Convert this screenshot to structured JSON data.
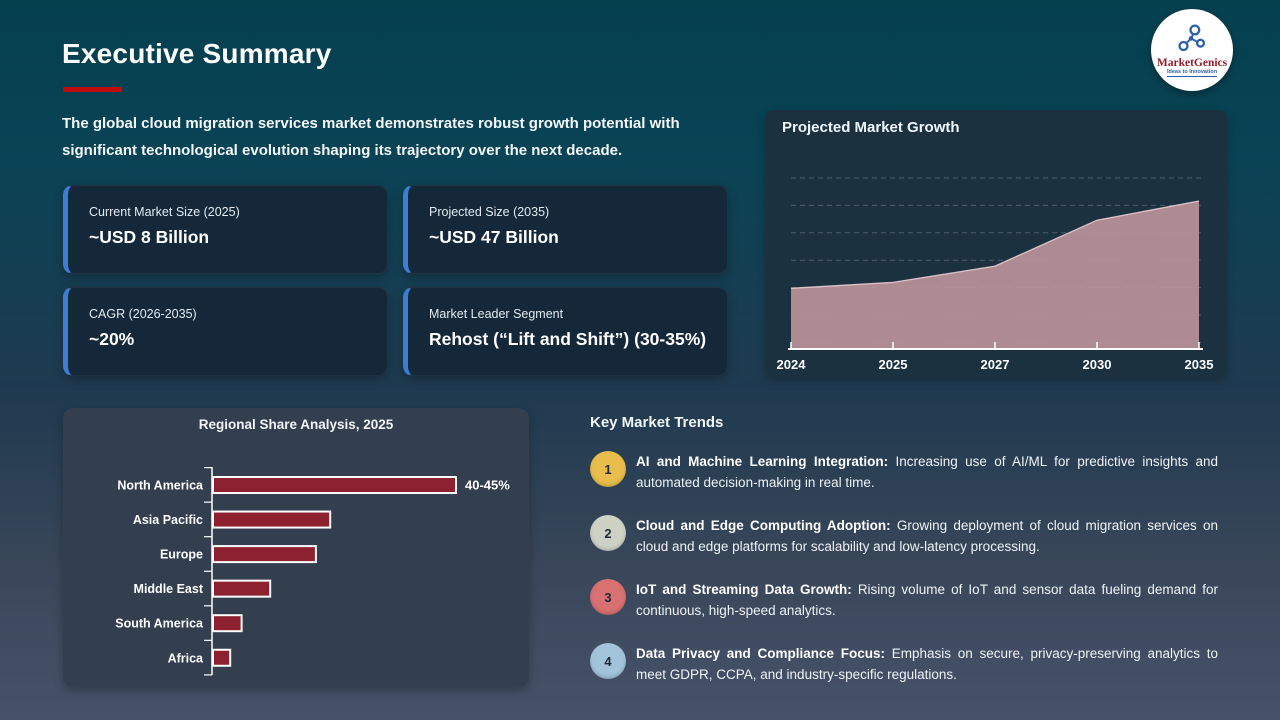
{
  "header": {
    "title": "Executive Summary"
  },
  "logo": {
    "name": "MarketGenics",
    "tagline": "Ideas to Innovation"
  },
  "intro": "The global cloud migration services market demonstrates robust growth potential with significant technological evolution shaping its trajectory over the next decade.",
  "stat_cards": [
    {
      "label": "Current Market Size (2025)",
      "value": "~USD 8 Billion"
    },
    {
      "label": "Projected Size (2035)",
      "value": "~USD 47 Billion"
    },
    {
      "label": "CAGR (2026-2035)",
      "value": "~20%"
    },
    {
      "label": "Market Leader Segment",
      "value": "Rehost (“Lift and Shift”) (30-35%)"
    }
  ],
  "chart_data": [
    {
      "type": "area",
      "title": "Projected Market Growth",
      "x": [
        "2024",
        "2025",
        "2027",
        "2030",
        "2035"
      ],
      "values": [
        41,
        45,
        56,
        87,
        100
      ],
      "ylim": [
        0,
        120
      ],
      "ylabel": "",
      "xlabel": "",
      "grid": "dashed-horizontal",
      "area_color": "#bb929a",
      "axis_color": "#ffffff"
    },
    {
      "type": "bar",
      "orientation": "horizontal",
      "title": "Regional Share Analysis, 2025",
      "categories": [
        "North America",
        "Asia Pacific",
        "Europe",
        "Middle East",
        "South America",
        "Africa"
      ],
      "values": [
        42.5,
        20.5,
        18,
        10,
        5,
        3
      ],
      "data_labels": [
        "40-45%",
        "",
        "",
        "",
        "",
        ""
      ],
      "bar_color": "#8d2130",
      "bar_border_color": "#ffffff",
      "axis_color": "#ffffff"
    }
  ],
  "trends": {
    "title": "Key Market Trends",
    "items": [
      {
        "num": "1",
        "badge_color": "#e9bd4b",
        "heading": "AI and Machine Learning Integration:",
        "text": "Increasing use of AI/ML for predictive insights and automated decision-making in real time."
      },
      {
        "num": "2",
        "badge_color": "#cdd2c5",
        "heading": "Cloud and Edge Computing Adoption:",
        "text": "Growing deployment of cloud migration services on cloud and edge platforms for scalability and low-latency processing."
      },
      {
        "num": "3",
        "badge_color": "#d87171",
        "heading": "IoT and Streaming Data Growth:",
        "text": "Rising volume of IoT and sensor data fueling demand for continuous, high-speed analytics."
      },
      {
        "num": "4",
        "badge_color": "#a2c3da",
        "heading": "Data Privacy and Compliance Focus:",
        "text": "Emphasis on secure, privacy-preserving analytics to meet GDPR, CCPA, and industry-specific regulations."
      }
    ]
  }
}
